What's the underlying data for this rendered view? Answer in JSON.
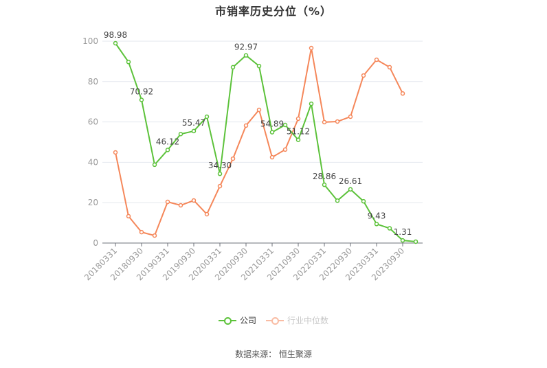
{
  "title": "市销率历史分位（%）",
  "source": "数据来源：  恒生聚源",
  "legend": [
    {
      "name": "公司",
      "color": "#5cc23a",
      "active": true
    },
    {
      "name": "行业中位数",
      "color": "#f5875a",
      "active": false
    }
  ],
  "chart_data": {
    "type": "line",
    "title": "市销率历史分位（%）",
    "xlabel": "",
    "ylabel": "",
    "ylim": [
      0,
      100
    ],
    "yticks": [
      0,
      20,
      40,
      60,
      80,
      100
    ],
    "grid": true,
    "legend_position": "bottom",
    "categories": [
      "20180331",
      "20180630",
      "20180930",
      "20181231",
      "20190331",
      "20190630",
      "20190930",
      "20191231",
      "20200331",
      "20200630",
      "20200930",
      "20201231",
      "20210331",
      "20210630",
      "20210930",
      "20211231",
      "20220331",
      "20220630",
      "20220930",
      "20221231",
      "20230331",
      "20230630",
      "20230930",
      "20231231"
    ],
    "xtick_labels": [
      "20180331",
      "20180930",
      "20190331",
      "20190930",
      "20200331",
      "20200930",
      "20210331",
      "20210930",
      "20220331",
      "20220930",
      "20230331",
      "20230930"
    ],
    "series": [
      {
        "name": "公司",
        "color": "#5cc23a",
        "values": [
          98.98,
          89.7,
          70.92,
          38.8,
          46.12,
          54.0,
          55.47,
          62.6,
          34.3,
          87.1,
          92.97,
          87.7,
          54.89,
          58.5,
          51.12,
          69.0,
          28.86,
          21.0,
          26.61,
          20.7,
          9.43,
          7.3,
          1.31,
          0.7
        ],
        "labels": {
          "0": "98.98",
          "2": "70.92",
          "4": "46.12",
          "6": "55.47",
          "8": "34.30",
          "10": "92.97",
          "12": "54.89",
          "14": "51.12",
          "16": "28.86",
          "18": "26.61",
          "20": "9.43",
          "22": "1.31"
        }
      },
      {
        "name": "行业中位数",
        "color": "#f5875a",
        "values": [
          44.9,
          13.3,
          5.4,
          3.7,
          20.4,
          18.7,
          21.1,
          14.3,
          28.2,
          41.8,
          58.2,
          66.0,
          42.5,
          46.3,
          61.6,
          96.6,
          59.9,
          60.2,
          62.6,
          83.0,
          90.8,
          87.1,
          74.1,
          null
        ]
      }
    ]
  }
}
